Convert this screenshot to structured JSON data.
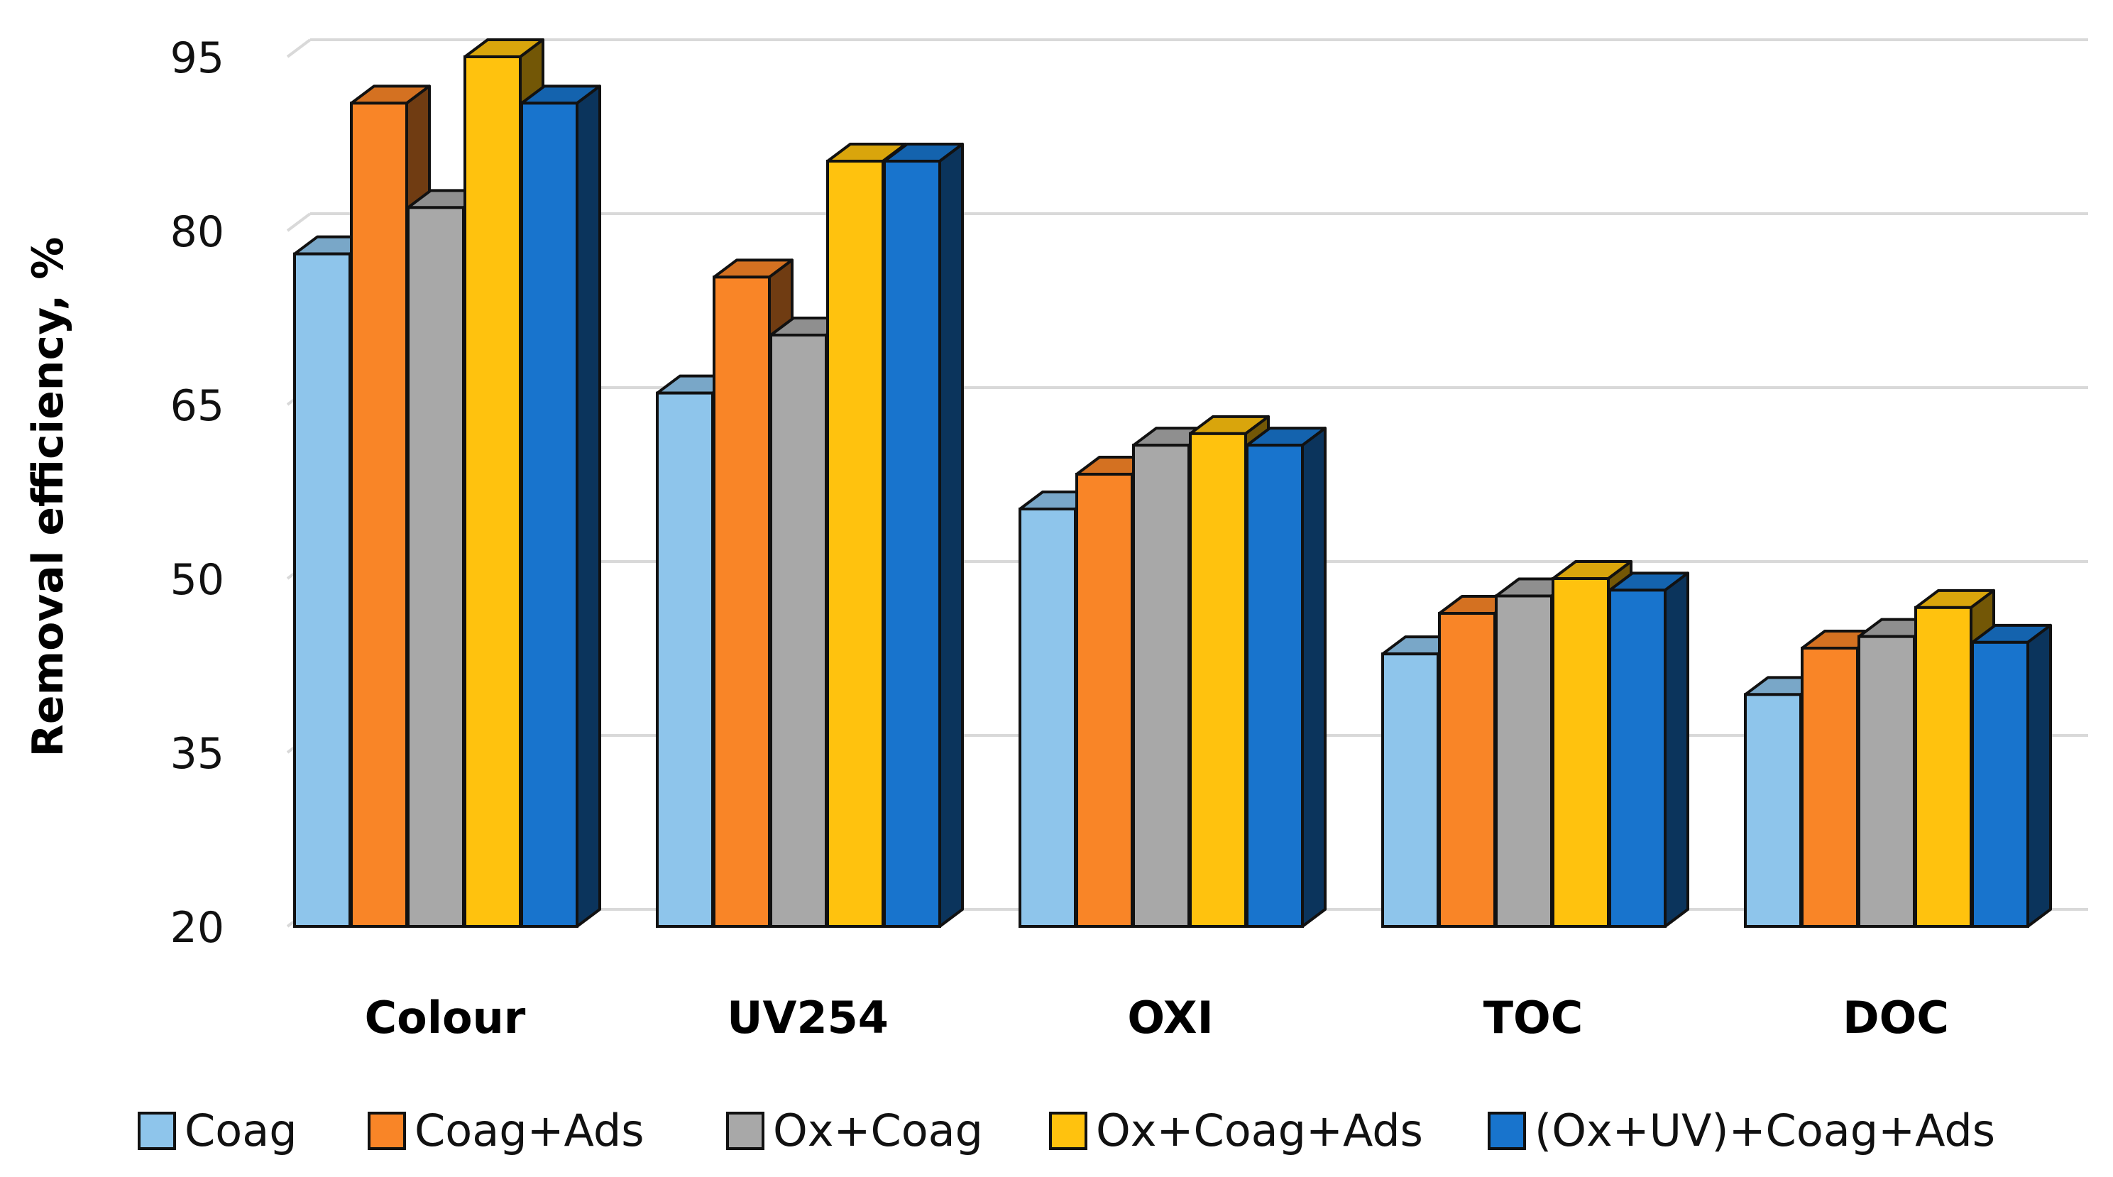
{
  "chart_data": {
    "type": "bar",
    "title": "",
    "xlabel": "",
    "ylabel": "Removal efficiency, %",
    "ylim": [
      20,
      95
    ],
    "yticks": [
      20,
      35,
      50,
      65,
      80,
      95
    ],
    "grid": true,
    "legend_position": "bottom",
    "categories": [
      "Colour",
      "UV254",
      "OXI",
      "TOC",
      "DOC"
    ],
    "series": [
      {
        "name": "Coag",
        "color": "#8EC5EB",
        "values": [
          78,
          66,
          56,
          43.5,
          40
        ]
      },
      {
        "name": "Coag+Ads",
        "color": "#F98527",
        "values": [
          91,
          76,
          59,
          47,
          44
        ]
      },
      {
        "name": "Ox+Coag",
        "color": "#A8A8A8",
        "values": [
          82,
          71,
          61.5,
          48.5,
          45
        ]
      },
      {
        "name": "Ox+Coag+Ads",
        "color": "#FFC20E",
        "values": [
          95,
          86,
          62.5,
          50,
          47.5
        ]
      },
      {
        "name": "(Ox+UV)+Coag+Ads",
        "color": "#1874CD",
        "values": [
          91,
          86,
          61.5,
          49,
          44.5
        ]
      }
    ]
  }
}
